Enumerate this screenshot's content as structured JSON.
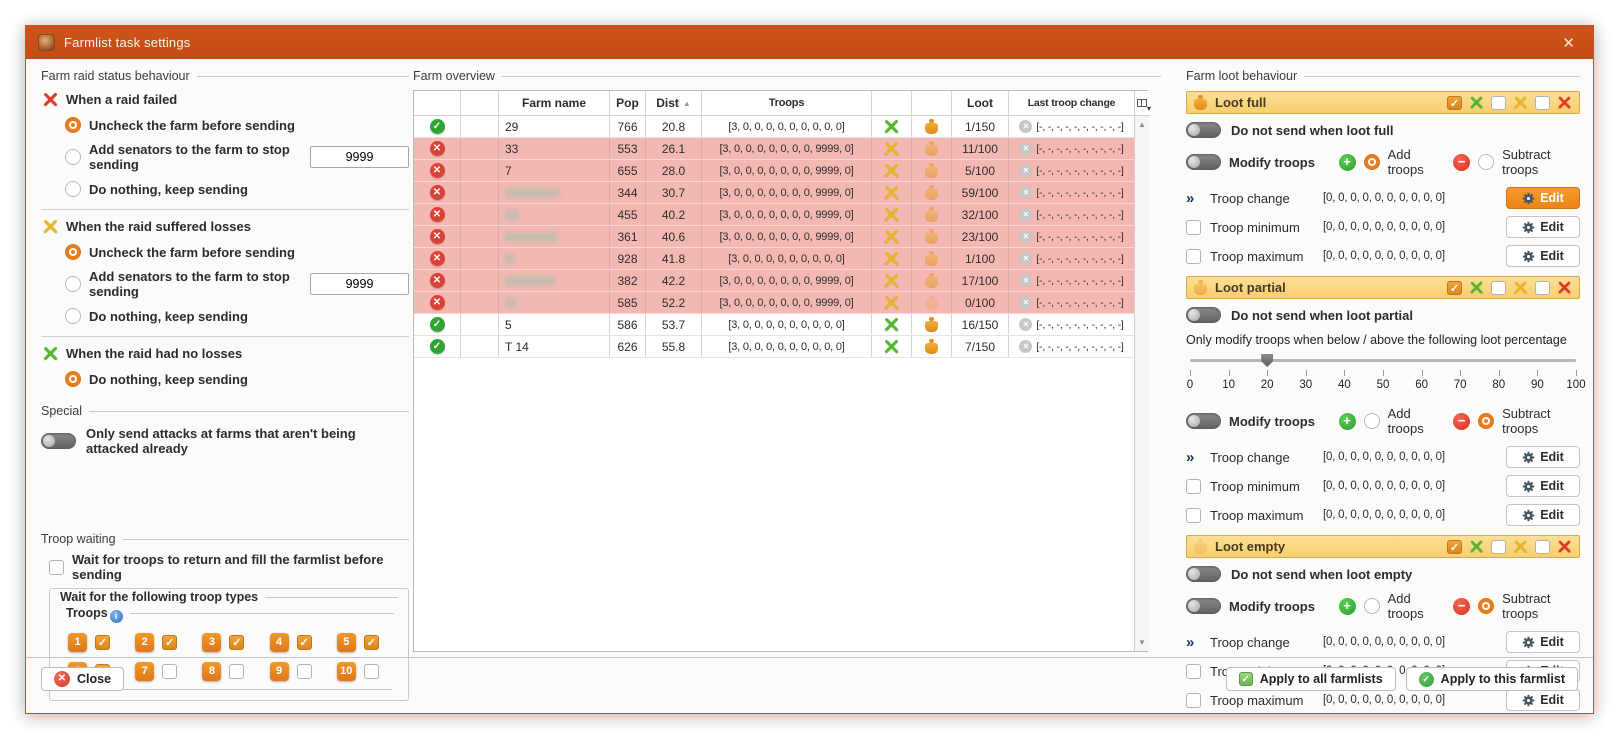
{
  "window": {
    "title": "Farmlist task settings",
    "close_glyph": "✕"
  },
  "raid": {
    "label": "Farm raid status behaviour",
    "sections": [
      {
        "title": "When a raid failed",
        "icon": "red-swords",
        "options": [
          {
            "label": "Uncheck the farm before sending",
            "selected": true
          },
          {
            "label": "Add senators to the farm to stop sending",
            "selected": false,
            "value": "9999"
          },
          {
            "label": "Do nothing, keep sending",
            "selected": false
          }
        ]
      },
      {
        "title": "When the raid suffered losses",
        "icon": "yellow-swords",
        "options": [
          {
            "label": "Uncheck the farm before sending",
            "selected": true
          },
          {
            "label": "Add senators to the farm to stop sending",
            "selected": false,
            "value": "9999"
          },
          {
            "label": "Do nothing, keep sending",
            "selected": false
          }
        ]
      },
      {
        "title": "When the raid had no losses",
        "icon": "green-swords",
        "options": [
          {
            "label": "Do nothing, keep sending",
            "selected": true
          }
        ]
      }
    ]
  },
  "special": {
    "label": "Special",
    "toggle": {
      "label": "Only send attacks at farms that aren't being attacked already",
      "on": false
    }
  },
  "troop_waiting": {
    "label": "Troop waiting",
    "wait_checkbox": {
      "label": "Wait for troops to return and fill the farmlist before sending",
      "checked": false
    },
    "subgroup_label": "Wait for the following troop types",
    "troops_label": "Troops",
    "troops": [
      {
        "n": "1",
        "checked": true
      },
      {
        "n": "2",
        "checked": true
      },
      {
        "n": "3",
        "checked": true
      },
      {
        "n": "4",
        "checked": true
      },
      {
        "n": "5",
        "checked": true
      },
      {
        "n": "6",
        "checked": true
      },
      {
        "n": "7",
        "checked": false
      },
      {
        "n": "8",
        "checked": false
      },
      {
        "n": "9",
        "checked": false
      },
      {
        "n": "10",
        "checked": false
      }
    ]
  },
  "table": {
    "label": "Farm overview",
    "columns": [
      "",
      "",
      "Farm name",
      "Pop",
      "Dist",
      "Troops",
      "",
      "",
      "Loot",
      "Last troop change"
    ],
    "sort": {
      "column": "Dist",
      "direction": "asc"
    },
    "rows": [
      {
        "status": "ok",
        "name": "29",
        "redacted": false,
        "redact_w": 0,
        "pop": "766",
        "dist": "20.8",
        "troops": "[3, 0, 0, 0, 0, 0, 0, 0, 0, 0]",
        "swords": "green",
        "bag": "full",
        "loot": "1/150",
        "last": "[-, -, -, -, -, -, -, -, -, -]"
      },
      {
        "status": "fail",
        "name": "33",
        "redacted": false,
        "redact_w": 0,
        "pop": "553",
        "dist": "26.1",
        "troops": "[3, 0, 0, 0, 0, 0, 0, 0, 9999, 0]",
        "swords": "yellow",
        "bag": "partial",
        "loot": "11/100",
        "last": "[-, -, -, -, -, -, -, -, -, -]"
      },
      {
        "status": "fail",
        "name": "7",
        "redacted": false,
        "redact_w": 0,
        "pop": "655",
        "dist": "28.0",
        "troops": "[3, 0, 0, 0, 0, 0, 0, 0, 9999, 0]",
        "swords": "yellow",
        "bag": "partial",
        "loot": "5/100",
        "last": "[-, -, -, -, -, -, -, -, -, -]"
      },
      {
        "status": "fail",
        "name": "",
        "redacted": true,
        "redact_w": 55,
        "pop": "344",
        "dist": "30.7",
        "troops": "[3, 0, 0, 0, 0, 0, 0, 0, 9999, 0]",
        "swords": "yellow",
        "bag": "partial",
        "loot": "59/100",
        "last": "[-, -, -, -, -, -, -, -, -, -]"
      },
      {
        "status": "fail",
        "name": "",
        "redacted": true,
        "redact_w": 14,
        "pop": "455",
        "dist": "40.2",
        "troops": "[3, 0, 0, 0, 0, 0, 0, 0, 9999, 0]",
        "swords": "yellow",
        "bag": "partial",
        "loot": "32/100",
        "last": "[-, -, -, -, -, -, -, -, -, -]"
      },
      {
        "status": "fail",
        "name": "",
        "redacted": true,
        "redact_w": 52,
        "pop": "361",
        "dist": "40.6",
        "troops": "[3, 0, 0, 0, 0, 0, 0, 0, 9999, 0]",
        "swords": "yellow",
        "bag": "partial",
        "loot": "23/100",
        "last": "[-, -, -, -, -, -, -, -, -, -]"
      },
      {
        "status": "fail",
        "name": "",
        "redacted": true,
        "redact_w": 10,
        "pop": "928",
        "dist": "41.8",
        "troops": "[3, 0, 0, 0, 0, 0, 0, 0, 0, 0]",
        "swords": "yellow",
        "bag": "partial",
        "loot": "1/100",
        "last": "[-, -, -, -, -, -, -, -, -, -]"
      },
      {
        "status": "fail",
        "name": "",
        "redacted": true,
        "redact_w": 50,
        "pop": "382",
        "dist": "42.2",
        "troops": "[3, 0, 0, 0, 0, 0, 0, 0, 9999, 0]",
        "swords": "yellow",
        "bag": "partial",
        "loot": "17/100",
        "last": "[-, -, -, -, -, -, -, -, -, -]"
      },
      {
        "status": "fail",
        "name": "",
        "redacted": true,
        "redact_w": 12,
        "pop": "585",
        "dist": "52.2",
        "troops": "[3, 0, 0, 0, 0, 0, 0, 0, 9999, 0]",
        "swords": "yellow",
        "bag": "empty",
        "loot": "0/100",
        "last": "[-, -, -, -, -, -, -, -, -, -]"
      },
      {
        "status": "ok",
        "name": "5",
        "redacted": false,
        "redact_w": 0,
        "pop": "586",
        "dist": "53.7",
        "troops": "[3, 0, 0, 0, 0, 0, 0, 0, 0, 0]",
        "swords": "green",
        "bag": "full",
        "loot": "16/150",
        "last": "[-, -, -, -, -, -, -, -, -, -]"
      },
      {
        "status": "ok",
        "name": "T 14",
        "redacted": false,
        "redact_w": 0,
        "pop": "626",
        "dist": "55.8",
        "troops": "[3, 0, 0, 0, 0, 0, 0, 0, 0, 0]",
        "swords": "green",
        "bag": "full",
        "loot": "7/150",
        "last": "[-, -, -, -, -, -, -, -, -, -]"
      }
    ]
  },
  "loot": {
    "label": "Farm loot behaviour",
    "sections": [
      {
        "title": "Loot full",
        "bag": "full",
        "header_checks": [
          {
            "checked": true,
            "swords": "green"
          },
          {
            "checked": false,
            "swords": "yellow"
          },
          {
            "checked": false,
            "swords": "red"
          }
        ],
        "do_not_send": {
          "label": "Do not send when loot full",
          "on": false
        },
        "modify": {
          "label": "Modify troops",
          "on": false
        },
        "add": {
          "label": "Add troops",
          "selected": true
        },
        "subtract": {
          "label": "Subtract troops",
          "selected": false
        },
        "rows": [
          {
            "label": "Troop change",
            "value": "[0, 0, 0, 0, 0, 0, 0, 0, 0, 0]",
            "edit_label": "Edit",
            "highlight": true
          },
          {
            "label": "Troop minimum",
            "value": "[0, 0, 0, 0, 0, 0, 0, 0, 0, 0]",
            "edit_label": "Edit",
            "highlight": false
          },
          {
            "label": "Troop maximum",
            "value": "[0, 0, 0, 0, 0, 0, 0, 0, 0, 0]",
            "edit_label": "Edit",
            "highlight": false
          }
        ]
      },
      {
        "title": "Loot partial",
        "bag": "partial",
        "header_checks": [
          {
            "checked": true,
            "swords": "green"
          },
          {
            "checked": false,
            "swords": "yellow"
          },
          {
            "checked": false,
            "swords": "red"
          }
        ],
        "do_not_send": {
          "label": "Do not send when loot partial",
          "on": false
        },
        "slider": {
          "label": "Only modify troops when below / above the following loot percentage",
          "value": 20,
          "ticks": [
            "0",
            "10",
            "20",
            "30",
            "40",
            "50",
            "60",
            "70",
            "80",
            "90",
            "100"
          ]
        },
        "modify": {
          "label": "Modify troops",
          "on": false
        },
        "add": {
          "label": "Add troops",
          "selected": false
        },
        "subtract": {
          "label": "Subtract troops",
          "selected": true
        },
        "rows": [
          {
            "label": "Troop change",
            "value": "[0, 0, 0, 0, 0, 0, 0, 0, 0, 0]",
            "edit_label": "Edit",
            "highlight": false
          },
          {
            "label": "Troop minimum",
            "value": "[0, 0, 0, 0, 0, 0, 0, 0, 0, 0]",
            "edit_label": "Edit",
            "highlight": false
          },
          {
            "label": "Troop maximum",
            "value": "[0, 0, 0, 0, 0, 0, 0, 0, 0, 0]",
            "edit_label": "Edit",
            "highlight": false
          }
        ]
      },
      {
        "title": "Loot empty",
        "bag": "empty",
        "header_checks": [
          {
            "checked": true,
            "swords": "green"
          },
          {
            "checked": false,
            "swords": "yellow"
          },
          {
            "checked": false,
            "swords": "red"
          }
        ],
        "do_not_send": {
          "label": "Do not send when loot empty",
          "on": false
        },
        "modify": {
          "label": "Modify troops",
          "on": false
        },
        "add": {
          "label": "Add troops",
          "selected": false
        },
        "subtract": {
          "label": "Subtract troops",
          "selected": true
        },
        "rows": [
          {
            "label": "Troop change",
            "value": "[0, 0, 0, 0, 0, 0, 0, 0, 0, 0]",
            "edit_label": "Edit",
            "highlight": false
          },
          {
            "label": "Troop minimum",
            "value": "[0, 0, 0, 0, 0, 0, 0, 0, 0, 0]",
            "edit_label": "Edit",
            "highlight": false
          },
          {
            "label": "Troop maximum",
            "value": "[0, 0, 0, 0, 0, 0, 0, 0, 0, 0]",
            "edit_label": "Edit",
            "highlight": false
          }
        ]
      }
    ]
  },
  "footer": {
    "close": {
      "label": "Close"
    },
    "apply_all": {
      "label": "Apply to all farmlists"
    },
    "apply_this": {
      "label": "Apply to this farmlist"
    }
  }
}
